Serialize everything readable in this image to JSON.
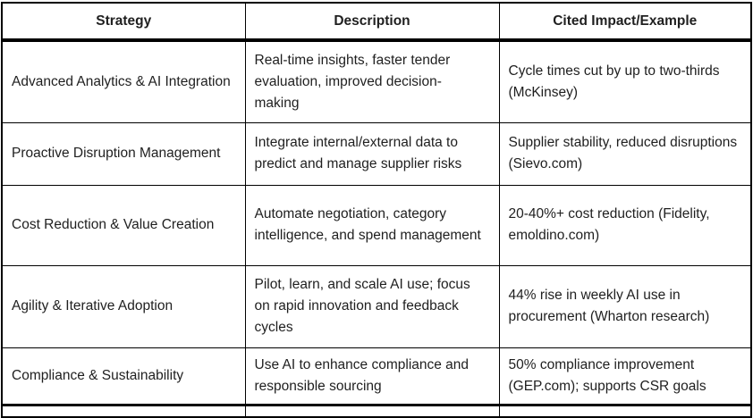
{
  "table": {
    "columns": [
      {
        "label": "Strategy"
      },
      {
        "label": "Description"
      },
      {
        "label": "Cited Impact/Example"
      }
    ],
    "rows": [
      {
        "strategy": "Advanced Analytics & AI Integration",
        "description": "Real-time insights, faster tender evaluation, improved decision-making",
        "impact": "Cycle times cut by up to two-thirds (McKinsey)"
      },
      {
        "strategy": "Proactive Disruption Management",
        "description": "Integrate internal/external data to predict and manage supplier risks",
        "impact": "Supplier stability, reduced disruptions (Sievo.com)"
      },
      {
        "strategy": "Cost Reduction & Value Creation",
        "description": "Automate negotiation, category intelligence, and spend management",
        "impact": "20-40%+ cost reduction (Fidelity, emoldino.com)"
      },
      {
        "strategy": "Agility & Iterative Adoption",
        "description": "Pilot, learn, and scale AI use; focus on rapid innovation and feedback cycles",
        "impact": "44% rise in weekly AI use in procurement (Wharton research)"
      },
      {
        "strategy": "Compliance & Sustainability",
        "description": "Use AI to enhance compliance and responsible sourcing",
        "impact": "50% compliance improvement (GEP.com); supports CSR goals"
      }
    ]
  },
  "colors": {
    "border": "#000000",
    "text": "#1f1f1f",
    "background": "#ffffff"
  }
}
